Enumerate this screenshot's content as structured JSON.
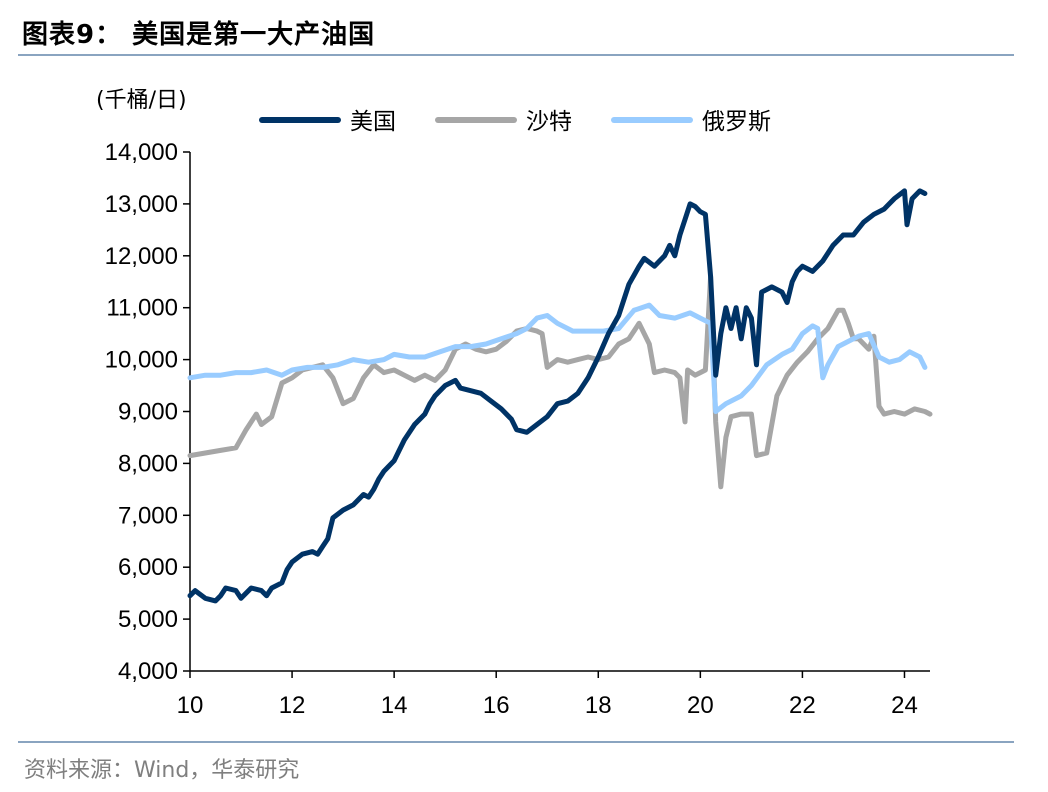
{
  "title": "图表9： 美国是第一大产油国",
  "source": "资料来源：Wind，华泰研究",
  "colors": {
    "us": "#003366",
    "saudi": "#a6a6a6",
    "russia": "#99ccff",
    "rule": "#8aa4c0"
  },
  "chart_data": {
    "type": "line",
    "ylabel": "(千桶/日)",
    "ylim": [
      4000,
      14000
    ],
    "xlim": [
      2010,
      2024.5
    ],
    "y_ticks": [
      "4,000",
      "5,000",
      "6,000",
      "7,000",
      "8,000",
      "9,000",
      "10,000",
      "11,000",
      "12,000",
      "13,000",
      "14,000"
    ],
    "x_ticks": [
      "10",
      "12",
      "14",
      "16",
      "18",
      "20",
      "22",
      "24"
    ],
    "legend_position": "top",
    "series": [
      {
        "name": "美国",
        "color": "#003366",
        "points": [
          [
            2010.0,
            5450
          ],
          [
            2010.1,
            5550
          ],
          [
            2010.3,
            5400
          ],
          [
            2010.5,
            5350
          ],
          [
            2010.6,
            5450
          ],
          [
            2010.7,
            5600
          ],
          [
            2010.9,
            5550
          ],
          [
            2011.0,
            5400
          ],
          [
            2011.2,
            5600
          ],
          [
            2011.4,
            5550
          ],
          [
            2011.5,
            5450
          ],
          [
            2011.6,
            5600
          ],
          [
            2011.8,
            5700
          ],
          [
            2011.9,
            5950
          ],
          [
            2012.0,
            6100
          ],
          [
            2012.2,
            6250
          ],
          [
            2012.4,
            6300
          ],
          [
            2012.5,
            6250
          ],
          [
            2012.6,
            6400
          ],
          [
            2012.7,
            6550
          ],
          [
            2012.8,
            6950
          ],
          [
            2013.0,
            7100
          ],
          [
            2013.2,
            7200
          ],
          [
            2013.4,
            7400
          ],
          [
            2013.5,
            7350
          ],
          [
            2013.6,
            7500
          ],
          [
            2013.7,
            7700
          ],
          [
            2013.8,
            7850
          ],
          [
            2014.0,
            8050
          ],
          [
            2014.1,
            8250
          ],
          [
            2014.2,
            8450
          ],
          [
            2014.4,
            8750
          ],
          [
            2014.6,
            8950
          ],
          [
            2014.7,
            9150
          ],
          [
            2014.8,
            9300
          ],
          [
            2015.0,
            9500
          ],
          [
            2015.2,
            9600
          ],
          [
            2015.3,
            9450
          ],
          [
            2015.5,
            9400
          ],
          [
            2015.7,
            9350
          ],
          [
            2015.9,
            9200
          ],
          [
            2016.1,
            9050
          ],
          [
            2016.3,
            8850
          ],
          [
            2016.4,
            8650
          ],
          [
            2016.6,
            8600
          ],
          [
            2016.8,
            8750
          ],
          [
            2017.0,
            8900
          ],
          [
            2017.2,
            9150
          ],
          [
            2017.4,
            9200
          ],
          [
            2017.6,
            9350
          ],
          [
            2017.8,
            9650
          ],
          [
            2018.0,
            10050
          ],
          [
            2018.2,
            10500
          ],
          [
            2018.4,
            10850
          ],
          [
            2018.6,
            11450
          ],
          [
            2018.8,
            11800
          ],
          [
            2018.9,
            11950
          ],
          [
            2019.1,
            11800
          ],
          [
            2019.3,
            12000
          ],
          [
            2019.4,
            12200
          ],
          [
            2019.5,
            12000
          ],
          [
            2019.6,
            12400
          ],
          [
            2019.7,
            12700
          ],
          [
            2019.8,
            13000
          ],
          [
            2019.9,
            12950
          ],
          [
            2020.0,
            12850
          ],
          [
            2020.1,
            12800
          ],
          [
            2020.2,
            11600
          ],
          [
            2020.3,
            9700
          ],
          [
            2020.4,
            10500
          ],
          [
            2020.5,
            11000
          ],
          [
            2020.6,
            10600
          ],
          [
            2020.7,
            11000
          ],
          [
            2020.8,
            10400
          ],
          [
            2020.9,
            11000
          ],
          [
            2021.0,
            10800
          ],
          [
            2021.1,
            9900
          ],
          [
            2021.2,
            11300
          ],
          [
            2021.4,
            11400
          ],
          [
            2021.6,
            11300
          ],
          [
            2021.7,
            11100
          ],
          [
            2021.8,
            11500
          ],
          [
            2021.9,
            11700
          ],
          [
            2022.0,
            11800
          ],
          [
            2022.2,
            11700
          ],
          [
            2022.4,
            11900
          ],
          [
            2022.6,
            12200
          ],
          [
            2022.8,
            12400
          ],
          [
            2023.0,
            12400
          ],
          [
            2023.2,
            12650
          ],
          [
            2023.4,
            12800
          ],
          [
            2023.6,
            12900
          ],
          [
            2023.8,
            13100
          ],
          [
            2024.0,
            13250
          ],
          [
            2024.05,
            12600
          ],
          [
            2024.15,
            13100
          ],
          [
            2024.3,
            13250
          ],
          [
            2024.4,
            13200
          ]
        ]
      },
      {
        "name": "沙特",
        "color": "#a6a6a6",
        "points": [
          [
            2010.0,
            8150
          ],
          [
            2010.3,
            8200
          ],
          [
            2010.6,
            8250
          ],
          [
            2010.9,
            8300
          ],
          [
            2011.1,
            8650
          ],
          [
            2011.3,
            8950
          ],
          [
            2011.4,
            8750
          ],
          [
            2011.6,
            8900
          ],
          [
            2011.8,
            9550
          ],
          [
            2012.0,
            9650
          ],
          [
            2012.2,
            9800
          ],
          [
            2012.4,
            9850
          ],
          [
            2012.6,
            9900
          ],
          [
            2012.8,
            9650
          ],
          [
            2013.0,
            9150
          ],
          [
            2013.2,
            9250
          ],
          [
            2013.4,
            9650
          ],
          [
            2013.6,
            9900
          ],
          [
            2013.8,
            9750
          ],
          [
            2014.0,
            9800
          ],
          [
            2014.2,
            9700
          ],
          [
            2014.4,
            9600
          ],
          [
            2014.6,
            9700
          ],
          [
            2014.8,
            9600
          ],
          [
            2015.0,
            9800
          ],
          [
            2015.2,
            10200
          ],
          [
            2015.4,
            10300
          ],
          [
            2015.6,
            10200
          ],
          [
            2015.8,
            10150
          ],
          [
            2016.0,
            10200
          ],
          [
            2016.2,
            10350
          ],
          [
            2016.4,
            10550
          ],
          [
            2016.6,
            10600
          ],
          [
            2016.8,
            10550
          ],
          [
            2016.9,
            10500
          ],
          [
            2017.0,
            9850
          ],
          [
            2017.2,
            10000
          ],
          [
            2017.4,
            9950
          ],
          [
            2017.6,
            10000
          ],
          [
            2017.8,
            10050
          ],
          [
            2018.0,
            10000
          ],
          [
            2018.2,
            10050
          ],
          [
            2018.4,
            10300
          ],
          [
            2018.6,
            10400
          ],
          [
            2018.8,
            10700
          ],
          [
            2019.0,
            10300
          ],
          [
            2019.1,
            9750
          ],
          [
            2019.3,
            9800
          ],
          [
            2019.5,
            9750
          ],
          [
            2019.6,
            9650
          ],
          [
            2019.7,
            8800
          ],
          [
            2019.75,
            9800
          ],
          [
            2019.9,
            9700
          ],
          [
            2020.0,
            9750
          ],
          [
            2020.1,
            9800
          ],
          [
            2020.2,
            11600
          ],
          [
            2020.3,
            8800
          ],
          [
            2020.4,
            7550
          ],
          [
            2020.5,
            8500
          ],
          [
            2020.6,
            8900
          ],
          [
            2020.8,
            8950
          ],
          [
            2021.0,
            8950
          ],
          [
            2021.1,
            8150
          ],
          [
            2021.3,
            8200
          ],
          [
            2021.5,
            9300
          ],
          [
            2021.7,
            9700
          ],
          [
            2021.9,
            9950
          ],
          [
            2022.1,
            10150
          ],
          [
            2022.3,
            10400
          ],
          [
            2022.5,
            10600
          ],
          [
            2022.7,
            10950
          ],
          [
            2022.8,
            10950
          ],
          [
            2022.9,
            10700
          ],
          [
            2023.0,
            10400
          ],
          [
            2023.1,
            10400
          ],
          [
            2023.3,
            10200
          ],
          [
            2023.4,
            10450
          ],
          [
            2023.5,
            9100
          ],
          [
            2023.6,
            8950
          ],
          [
            2023.8,
            9000
          ],
          [
            2024.0,
            8950
          ],
          [
            2024.2,
            9050
          ],
          [
            2024.4,
            9000
          ],
          [
            2024.5,
            8950
          ]
        ]
      },
      {
        "name": "俄罗斯",
        "color": "#99ccff",
        "points": [
          [
            2010.0,
            9650
          ],
          [
            2010.3,
            9700
          ],
          [
            2010.6,
            9700
          ],
          [
            2010.9,
            9750
          ],
          [
            2011.2,
            9750
          ],
          [
            2011.5,
            9800
          ],
          [
            2011.8,
            9700
          ],
          [
            2012.0,
            9800
          ],
          [
            2012.3,
            9850
          ],
          [
            2012.6,
            9850
          ],
          [
            2012.9,
            9900
          ],
          [
            2013.2,
            10000
          ],
          [
            2013.5,
            9950
          ],
          [
            2013.8,
            10000
          ],
          [
            2014.0,
            10100
          ],
          [
            2014.3,
            10050
          ],
          [
            2014.6,
            10050
          ],
          [
            2014.9,
            10150
          ],
          [
            2015.2,
            10250
          ],
          [
            2015.5,
            10250
          ],
          [
            2015.8,
            10300
          ],
          [
            2016.1,
            10400
          ],
          [
            2016.4,
            10500
          ],
          [
            2016.6,
            10600
          ],
          [
            2016.8,
            10800
          ],
          [
            2017.0,
            10850
          ],
          [
            2017.2,
            10700
          ],
          [
            2017.5,
            10550
          ],
          [
            2017.8,
            10550
          ],
          [
            2018.1,
            10550
          ],
          [
            2018.4,
            10600
          ],
          [
            2018.7,
            10950
          ],
          [
            2019.0,
            11050
          ],
          [
            2019.2,
            10850
          ],
          [
            2019.5,
            10800
          ],
          [
            2019.8,
            10900
          ],
          [
            2020.0,
            10800
          ],
          [
            2020.2,
            10700
          ],
          [
            2020.3,
            9000
          ],
          [
            2020.5,
            9150
          ],
          [
            2020.8,
            9300
          ],
          [
            2021.0,
            9500
          ],
          [
            2021.3,
            9900
          ],
          [
            2021.6,
            10100
          ],
          [
            2021.8,
            10200
          ],
          [
            2022.0,
            10500
          ],
          [
            2022.2,
            10650
          ],
          [
            2022.3,
            10600
          ],
          [
            2022.4,
            9650
          ],
          [
            2022.5,
            9900
          ],
          [
            2022.7,
            10250
          ],
          [
            2022.9,
            10350
          ],
          [
            2023.1,
            10450
          ],
          [
            2023.3,
            10500
          ],
          [
            2023.5,
            10050
          ],
          [
            2023.7,
            9950
          ],
          [
            2023.9,
            10000
          ],
          [
            2024.1,
            10150
          ],
          [
            2024.3,
            10050
          ],
          [
            2024.4,
            9850
          ]
        ]
      }
    ]
  }
}
